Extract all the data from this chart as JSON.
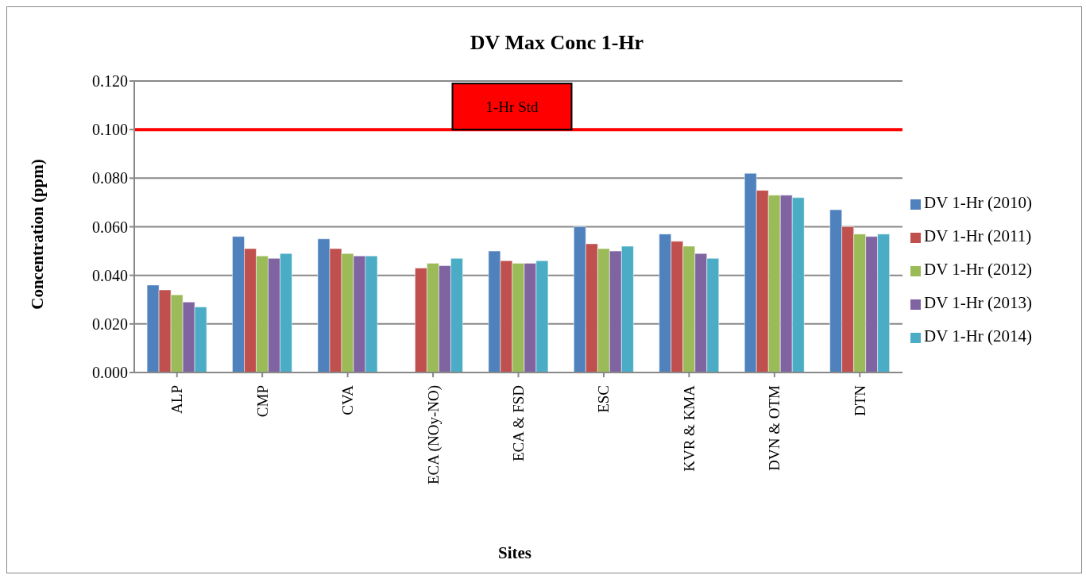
{
  "chart_data": {
    "type": "bar",
    "title": "DV Max Conc 1-Hr",
    "xlabel": "Sites",
    "ylabel": "Concentration (ppm)",
    "categories": [
      "ALP",
      "CMP",
      "CVA",
      "ECA (NOy-NO)",
      "ECA & FSD",
      "ESC",
      "KVR & KMA",
      "DVN & OTM",
      "DTN"
    ],
    "series": [
      {
        "name": "DV 1-Hr (2010)",
        "color": "#4f81bd",
        "values": [
          0.036,
          0.056,
          0.055,
          null,
          0.05,
          0.06,
          0.057,
          0.082,
          0.067
        ]
      },
      {
        "name": "DV 1-Hr (2011)",
        "color": "#c0504d",
        "values": [
          0.034,
          0.051,
          0.051,
          0.043,
          0.046,
          0.053,
          0.054,
          0.075,
          0.06
        ]
      },
      {
        "name": "DV 1-Hr (2012)",
        "color": "#9bbb59",
        "values": [
          0.032,
          0.048,
          0.049,
          0.045,
          0.045,
          0.051,
          0.052,
          0.073,
          0.057
        ]
      },
      {
        "name": "DV 1-Hr (2013)",
        "color": "#8064a2",
        "values": [
          0.029,
          0.047,
          0.048,
          0.044,
          0.045,
          0.05,
          0.049,
          0.073,
          0.056
        ]
      },
      {
        "name": "DV 1-Hr (2014)",
        "color": "#4bacc6",
        "values": [
          0.027,
          0.049,
          0.048,
          0.047,
          0.046,
          0.052,
          0.047,
          0.072,
          0.057
        ]
      }
    ],
    "ylim": [
      0,
      0.12
    ],
    "yticks": [
      {
        "value": 0,
        "label": "0.000"
      },
      {
        "value": 0.02,
        "label": "0.020"
      },
      {
        "value": 0.04,
        "label": "0.040"
      },
      {
        "value": 0.06,
        "label": "0.060"
      },
      {
        "value": 0.08,
        "label": "0.080"
      },
      {
        "value": 0.1,
        "label": "0.100"
      },
      {
        "value": 0.12,
        "label": "0.120"
      }
    ],
    "grid": "y",
    "legend": "right",
    "ref_lines": [
      {
        "axis": "y",
        "value": 0.1,
        "label": "1-Hr Std",
        "color": "#ff0000"
      }
    ]
  }
}
